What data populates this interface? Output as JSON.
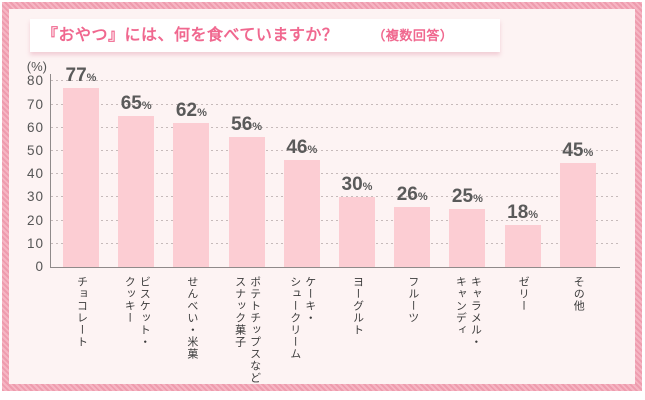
{
  "header": {
    "title": "『おやつ』には、何を食べていますか？",
    "note": "（複数回答）"
  },
  "chart_data": {
    "type": "bar",
    "title": "『おやつ』には、何を食べていますか？（複数回答）",
    "unit_label": "(%)",
    "categories": [
      "チョコレート",
      "ビスケット・\nクッキー",
      "せんべい・米菓",
      "ポテトチップスなど\nスナック菓子",
      "ケーキ・\nシュークリーム",
      "ヨーグルト",
      "フルーツ",
      "キャラメル・\nキャンディ",
      "ゼリー",
      "その他"
    ],
    "values": [
      77,
      65,
      62,
      56,
      46,
      30,
      26,
      25,
      18,
      45
    ],
    "value_suffix": "%",
    "ylim": [
      0,
      80
    ],
    "ytick_step": 10,
    "grid": "horizontal-dotted",
    "legend": "none",
    "colors": {
      "bar": "#fccdd3",
      "panel_background": "#fdf3f3",
      "frame_border": "#f2a4b4",
      "title_text": "#f0688f",
      "axis_text": "#555555",
      "gridline": "#c6baba"
    }
  }
}
